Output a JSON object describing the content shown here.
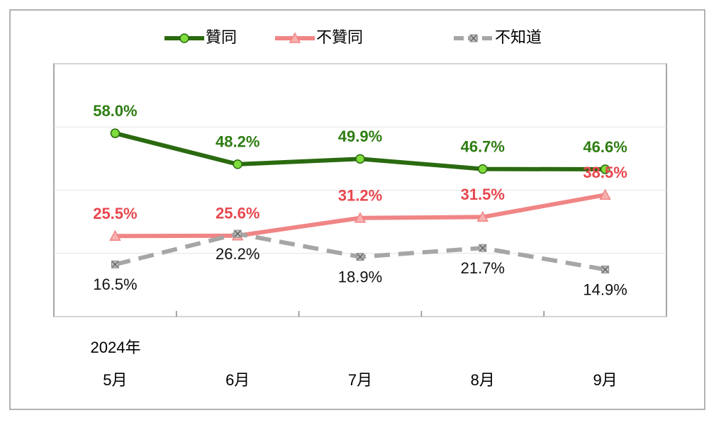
{
  "chart_data": {
    "type": "line",
    "year_label": "2024年",
    "categories": [
      "5月",
      "6月",
      "7月",
      "8月",
      "9月"
    ],
    "series": [
      {
        "name": "贊同",
        "color": "#2a6a10",
        "marker": "circle",
        "marker_color": "#7fdc3c",
        "label_color": "#2e7d12",
        "dash": false,
        "values": [
          58.0,
          48.2,
          49.9,
          46.7,
          46.6
        ],
        "value_labels": [
          "58.0%",
          "48.2%",
          "49.9%",
          "46.7%",
          "46.6%"
        ]
      },
      {
        "name": "不贊同",
        "color": "#f08585",
        "marker": "triangle",
        "marker_color": "#f7b0b0",
        "label_color": "#e8474e",
        "dash": false,
        "values": [
          25.5,
          25.6,
          31.2,
          31.5,
          38.5
        ],
        "value_labels": [
          "25.5%",
          "25.6%",
          "31.2%",
          "31.5%",
          "38.5%"
        ]
      },
      {
        "name": "不知道",
        "color": "#a6a6a6",
        "marker": "xsquare",
        "marker_color": "#8c8c8c",
        "label_color": "#111111",
        "dash": true,
        "values": [
          16.5,
          26.2,
          18.9,
          21.7,
          14.9
        ],
        "value_labels": [
          "16.5%",
          "26.2%",
          "18.9%",
          "21.7%",
          "14.9%"
        ]
      }
    ],
    "ylim": [
      0,
      80
    ],
    "yticks": [
      0,
      20,
      40,
      60,
      80
    ],
    "grid": true,
    "legend": "top"
  }
}
